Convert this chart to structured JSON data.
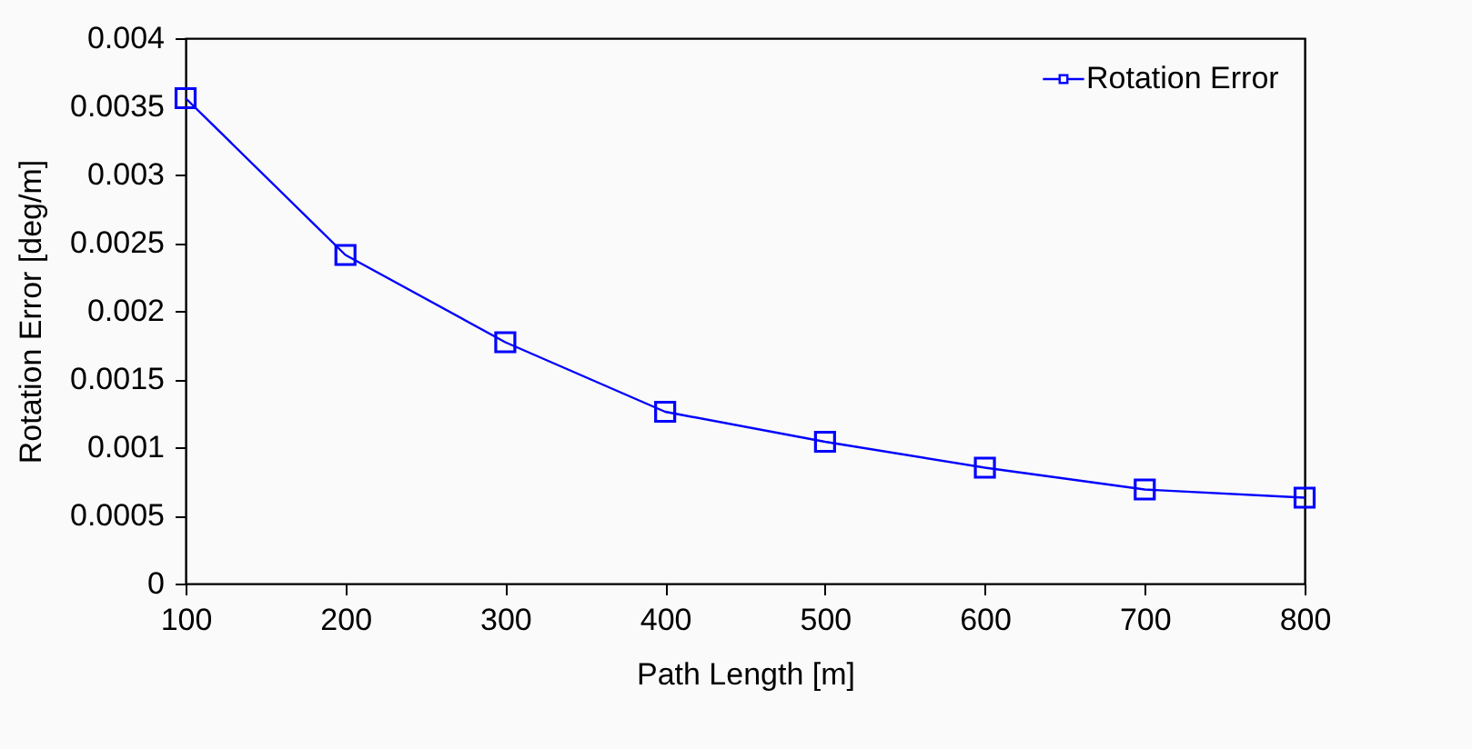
{
  "chart_data": {
    "type": "line",
    "xlabel": "Path Length [m]",
    "ylabel": "Rotation Error [deg/m]",
    "x": [
      100,
      200,
      300,
      400,
      500,
      600,
      700,
      800
    ],
    "series": [
      {
        "name": "Rotation Error",
        "color": "#0000ff",
        "values": [
          0.00356,
          0.00241,
          0.00177,
          0.00126,
          0.00104,
          0.00085,
          0.00069,
          0.00063
        ]
      }
    ],
    "xlim": [
      100,
      800
    ],
    "xticks": [
      100,
      200,
      300,
      400,
      500,
      600,
      700,
      800
    ],
    "ylim": [
      0,
      0.004
    ],
    "yticks": [
      0,
      0.0005,
      0.001,
      0.0015,
      0.002,
      0.0025,
      0.003,
      0.0035,
      0.004
    ],
    "grid": false,
    "legend": "top right",
    "marker": "square",
    "line_style": "solid"
  }
}
